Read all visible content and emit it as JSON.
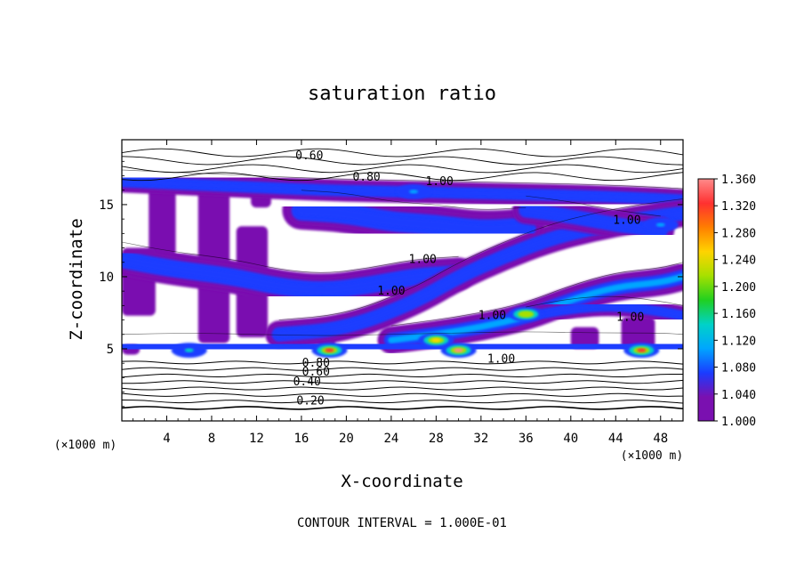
{
  "chart_data": {
    "type": "heatmap",
    "title": "saturation ratio",
    "xlabel": "X-coordinate",
    "ylabel": "Z-coordinate",
    "x_unit_left": "(×1000 m)",
    "x_unit_right": "(×1000 m)",
    "xlim": [
      0,
      50
    ],
    "ylim": [
      0,
      19.5
    ],
    "x_ticks": [
      4,
      8,
      12,
      16,
      20,
      24,
      28,
      32,
      36,
      40,
      44,
      48
    ],
    "y_ticks": [
      5,
      10,
      15
    ],
    "footer": "CONTOUR INTERVAL = 1.000E-01",
    "colorbar": {
      "min": 1.0,
      "max": 1.36,
      "labels": [
        "1.360",
        "1.320",
        "1.280",
        "1.240",
        "1.200",
        "1.160",
        "1.120",
        "1.080",
        "1.040",
        "1.000"
      ],
      "colors": [
        "#ff8a8a",
        "#ff3030",
        "#ff7f00",
        "#ffd400",
        "#a6e000",
        "#20d020",
        "#00d2c8",
        "#00a6ff",
        "#1a3cff",
        "#7a10b0"
      ]
    },
    "contour_labels": [
      {
        "text": "0.60",
        "x": 16.7,
        "z": 18.4
      },
      {
        "text": "0.80",
        "x": 21.8,
        "z": 16.9
      },
      {
        "text": "1.00",
        "x": 28.3,
        "z": 16.6
      },
      {
        "text": "1.00",
        "x": 45.0,
        "z": 13.9
      },
      {
        "text": "1.00",
        "x": 26.8,
        "z": 11.2
      },
      {
        "text": "1.00",
        "x": 24.0,
        "z": 9.0
      },
      {
        "text": "1.00",
        "x": 33.0,
        "z": 7.3
      },
      {
        "text": "1.00",
        "x": 45.3,
        "z": 7.2
      },
      {
        "text": "1.00",
        "x": 33.8,
        "z": 4.3
      },
      {
        "text": "0.80",
        "x": 17.3,
        "z": 4.0
      },
      {
        "text": "0.60",
        "x": 17.3,
        "z": 3.4
      },
      {
        "text": "0.40",
        "x": 16.5,
        "z": 2.7
      },
      {
        "text": "0.20",
        "x": 16.8,
        "z": 1.4
      }
    ],
    "high_bands": [
      {
        "name": "band-top",
        "pts": [
          [
            0,
            16.6
          ],
          [
            6,
            16.4
          ],
          [
            12,
            16.2
          ],
          [
            18,
            16.0
          ],
          [
            24,
            15.9
          ],
          [
            30,
            15.8
          ],
          [
            36,
            15.7
          ],
          [
            42,
            15.6
          ],
          [
            48,
            15.4
          ],
          [
            50,
            15.3
          ]
        ],
        "thickness": 0.8,
        "level": 1.07
      },
      {
        "name": "band-mid-left",
        "pts": [
          [
            0,
            11.2
          ],
          [
            4,
            10.6
          ],
          [
            10,
            10.0
          ],
          [
            14,
            9.3
          ],
          [
            18,
            9.0
          ],
          [
            22,
            9.4
          ],
          [
            26,
            10.0
          ],
          [
            30,
            10.2
          ]
        ],
        "thickness": 1.2,
        "level": 1.05
      },
      {
        "name": "band-diag",
        "pts": [
          [
            14,
            6.0
          ],
          [
            20,
            6.4
          ],
          [
            26,
            8.2
          ],
          [
            30,
            10.0
          ],
          [
            34,
            11.4
          ],
          [
            38,
            12.6
          ],
          [
            42,
            13.4
          ],
          [
            46,
            14.0
          ],
          [
            50,
            14.4
          ]
        ],
        "thickness": 1.0,
        "level": 1.07
      },
      {
        "name": "band-diag-low",
        "pts": [
          [
            24,
            5.6
          ],
          [
            28,
            6.0
          ],
          [
            32,
            6.5
          ],
          [
            36,
            7.2
          ],
          [
            40,
            8.4
          ],
          [
            44,
            9.3
          ],
          [
            48,
            9.6
          ],
          [
            50,
            10.0
          ]
        ],
        "thickness": 1.0,
        "level": 1.1
      },
      {
        "name": "band-upper-mid",
        "pts": [
          [
            16,
            14.6
          ],
          [
            20,
            14.4
          ],
          [
            24,
            13.8
          ],
          [
            28,
            13.6
          ],
          [
            32,
            13.2
          ],
          [
            36,
            13.4
          ]
        ],
        "thickness": 1.4,
        "level": 1.04
      },
      {
        "name": "band-right-mid",
        "pts": [
          [
            36,
            7.2
          ],
          [
            40,
            7.8
          ],
          [
            44,
            8.0
          ],
          [
            48,
            7.6
          ],
          [
            50,
            7.3
          ]
        ],
        "thickness": 0.7,
        "level": 1.04
      },
      {
        "name": "band-base",
        "pts": [
          [
            0,
            5.1
          ],
          [
            6,
            5.2
          ],
          [
            12,
            5.1
          ],
          [
            18,
            5.0
          ],
          [
            24,
            5.1
          ],
          [
            30,
            5.2
          ],
          [
            36,
            5.3
          ],
          [
            42,
            5.2
          ],
          [
            48,
            5.2
          ],
          [
            50,
            5.1
          ]
        ],
        "thickness": 0.9,
        "level": 1.06
      },
      {
        "name": "band-upper-right",
        "pts": [
          [
            36,
            14.6
          ],
          [
            40,
            14.2
          ],
          [
            44,
            13.6
          ],
          [
            48,
            13.2
          ]
        ],
        "thickness": 1.0,
        "level": 1.05
      }
    ],
    "hot_spots": [
      {
        "x": 18.5,
        "z": 4.9,
        "level": 1.3
      },
      {
        "x": 30.0,
        "z": 4.9,
        "level": 1.33
      },
      {
        "x": 36.0,
        "z": 7.4,
        "level": 1.2
      },
      {
        "x": 6.0,
        "z": 4.9,
        "level": 1.12
      },
      {
        "x": 46.3,
        "z": 4.9,
        "level": 1.3
      },
      {
        "x": 28.0,
        "z": 5.6,
        "level": 1.22
      },
      {
        "x": 26.0,
        "z": 15.9,
        "level": 1.1
      },
      {
        "x": 48.0,
        "z": 13.6,
        "level": 1.1
      }
    ],
    "purple_regions": [
      {
        "x": [
          2.4,
          4.8
        ],
        "z": [
          10.4,
          16.2
        ]
      },
      {
        "x": [
          6.8,
          9.6
        ],
        "z": [
          5.4,
          16.6
        ]
      },
      {
        "x": [
          0.0,
          3.0
        ],
        "z": [
          7.3,
          12.0
        ]
      },
      {
        "x": [
          10.2,
          13.0
        ],
        "z": [
          5.8,
          13.5
        ]
      },
      {
        "x": [
          11.5,
          13.3
        ],
        "z": [
          14.8,
          16.6
        ]
      },
      {
        "x": [
          17.5,
          19.0
        ],
        "z": [
          4.8,
          6.2
        ]
      },
      {
        "x": [
          44.5,
          47.5
        ],
        "z": [
          5.0,
          7.2
        ]
      },
      {
        "x": [
          40.0,
          42.5
        ],
        "z": [
          5.0,
          6.5
        ]
      },
      {
        "x": [
          0.0,
          1.6
        ],
        "z": [
          4.6,
          5.3
        ]
      }
    ],
    "dry_contours_lower": [
      0.2,
      0.3,
      0.4,
      0.5,
      0.6,
      0.7,
      0.8,
      0.9
    ],
    "dry_contours_upper": [
      0.6,
      0.7,
      0.8,
      0.9
    ]
  }
}
